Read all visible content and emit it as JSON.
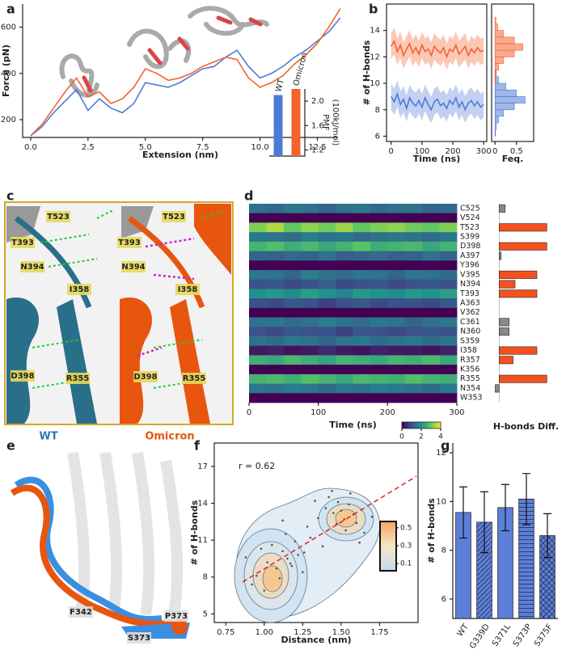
{
  "chart_data": [
    {
      "type": "line",
      "panel": "a",
      "xlabel": "Extension (nm)",
      "ylabel": "Force (pN)",
      "x": [
        0,
        0.5,
        1,
        1.5,
        2,
        2.5,
        3,
        3.5,
        4,
        4.5,
        5,
        5.5,
        6,
        6.5,
        7,
        7.5,
        8,
        8.5,
        9,
        9.5,
        10,
        10.5,
        11,
        11.5,
        12,
        12.5,
        13,
        13.5
      ],
      "series": [
        {
          "name": "WT",
          "color": "#4f7bd6",
          "values": [
            130,
            170,
            230,
            280,
            330,
            240,
            290,
            250,
            230,
            270,
            360,
            350,
            340,
            360,
            390,
            420,
            430,
            470,
            500,
            430,
            380,
            400,
            430,
            470,
            500,
            540,
            580,
            640
          ]
        },
        {
          "name": "Omicron",
          "color": "#f4622e",
          "values": [
            130,
            180,
            250,
            320,
            380,
            300,
            320,
            270,
            290,
            340,
            420,
            400,
            370,
            380,
            400,
            430,
            450,
            470,
            460,
            380,
            340,
            360,
            390,
            440,
            480,
            530,
            600,
            680
          ]
        }
      ],
      "xlim": [
        -0.35,
        13.4
      ],
      "xticks": [
        {
          "value": 0,
          "label": "0.0"
        },
        2.5,
        {
          "value": 5,
          "label": "5.0"
        },
        7.5,
        {
          "value": 10,
          "label": "10.0"
        },
        12.5
      ],
      "ylim": [
        123,
        700
      ],
      "yticks": [
        200,
        400,
        600
      ]
    },
    {
      "type": "bar",
      "ylabel": [
        "PMF",
        "(100kJ/mol)"
      ],
      "categories": [
        "WT",
        "Omicron"
      ],
      "values": [
        2.1,
        2.2
      ],
      "colors": [
        "#4f7bd6",
        "#f4622e"
      ],
      "ylim": [
        1.1,
        2.2
      ],
      "yticks": [
        1.2,
        1.6,
        {
          "value": 2,
          "label": "2.0"
        }
      ]
    },
    {
      "type": "line",
      "panel": "b",
      "xlabel": "Time (ns)",
      "ylabel": "# of H-bonds",
      "x": [
        0,
        10,
        20,
        30,
        40,
        50,
        60,
        70,
        80,
        90,
        100,
        110,
        120,
        130,
        140,
        150,
        160,
        170,
        180,
        190,
        200,
        210,
        220,
        230,
        240,
        250,
        260,
        270,
        280,
        290,
        300
      ],
      "series": [
        {
          "name": "Omicron",
          "color": "#f4622e",
          "error": 1.0,
          "values": [
            12.8,
            13.2,
            12.4,
            12.9,
            12.1,
            12.6,
            13.0,
            12.3,
            12.7,
            12.2,
            12.9,
            12.4,
            12.6,
            12.1,
            12.8,
            12.5,
            12.3,
            12.7,
            12.0,
            12.6,
            12.4,
            12.9,
            12.2,
            12.5,
            12.8,
            12.1,
            12.6,
            12.3,
            12.7,
            12.4,
            12.5
          ]
        },
        {
          "name": "WT",
          "color": "#4f7bd6",
          "error": 1.0,
          "values": [
            9.0,
            8.6,
            9.2,
            8.4,
            8.8,
            8.1,
            8.9,
            8.5,
            8.3,
            8.7,
            8.2,
            8.9,
            8.4,
            8.0,
            8.6,
            8.8,
            8.3,
            8.5,
            8.1,
            8.7,
            8.4,
            8.9,
            8.2,
            8.6,
            8.0,
            8.5,
            8.7,
            8.3,
            8.6,
            8.2,
            8.4
          ]
        }
      ],
      "xlim": [
        -15,
        310
      ],
      "xticks": [
        0,
        100,
        200,
        300
      ],
      "ylim": [
        5.6,
        16
      ],
      "yticks": [
        6,
        8,
        10,
        12,
        14
      ]
    },
    {
      "type": "histogram",
      "xlabel": "Feq.",
      "bins": [
        5.5,
        6,
        6.5,
        7,
        7.5,
        8,
        8.5,
        9,
        9.5,
        10,
        10.5,
        11,
        11.5,
        12,
        12.5,
        13,
        13.5,
        14,
        14.5,
        15
      ],
      "series": [
        {
          "name": "WT",
          "color": "#4f7bd6",
          "values": [
            0,
            0.01,
            0.03,
            0.08,
            0.2,
            0.45,
            0.7,
            0.5,
            0.25,
            0.08,
            0.02,
            0,
            0,
            0,
            0,
            0,
            0,
            0,
            0
          ]
        },
        {
          "name": "Omicron",
          "color": "#f4622e",
          "values": [
            0,
            0,
            0,
            0,
            0,
            0,
            0,
            0,
            0,
            0.01,
            0.03,
            0.08,
            0.2,
            0.45,
            0.65,
            0.45,
            0.2,
            0.06,
            0.02
          ]
        }
      ],
      "xlim": [
        -0.08,
        0.9
      ],
      "xticks": [
        0,
        0.5
      ],
      "ylim": [
        5.6,
        16
      ]
    },
    {
      "type": "heatmap",
      "panel": "d",
      "xlabel": "Time (ns)",
      "xlim": [
        0,
        300
      ],
      "xticks": [
        0,
        100,
        200,
        300
      ],
      "colormap": "viridis",
      "clim": [
        0,
        4
      ],
      "cticks": [
        0,
        2,
        4
      ],
      "matrix": [
        [
          1.5,
          1.4,
          1.6,
          1.5,
          1.3,
          1.5,
          1.6,
          1.4,
          1.5,
          1.5,
          1.3,
          1.4
        ],
        [
          0,
          0,
          0,
          0,
          0,
          0,
          0,
          0,
          0,
          0,
          0,
          0
        ],
        [
          3.2,
          3.5,
          3.0,
          3.3,
          3.1,
          3.4,
          3.0,
          3.2,
          3.3,
          3.1,
          3.0,
          3.2
        ],
        [
          1.6,
          1.5,
          1.4,
          1.7,
          1.5,
          1.6,
          1.4,
          1.5,
          1.6,
          1.5,
          1.4,
          1.6
        ],
        [
          2.6,
          2.8,
          2.5,
          2.7,
          2.4,
          2.6,
          2.9,
          2.5,
          2.6,
          2.7,
          2.4,
          2.6
        ],
        [
          1.3,
          1.2,
          1.4,
          1.3,
          1.5,
          1.2,
          1.3,
          1.4,
          1.2,
          1.3,
          1.5,
          1.3
        ],
        [
          0,
          0,
          0,
          0,
          0,
          0,
          0,
          0,
          0,
          0,
          0,
          0
        ],
        [
          1.6,
          1.5,
          1.3,
          1.7,
          1.5,
          1.4,
          1.6,
          1.5,
          1.3,
          1.6,
          1.5,
          1.4
        ],
        [
          1.0,
          1.1,
          0.9,
          1.0,
          1.2,
          0.9,
          1.0,
          1.1,
          0.9,
          1.0,
          1.1,
          1.0
        ],
        [
          2.0,
          2.1,
          1.9,
          2.2,
          2.0,
          1.8,
          2.1,
          2.0,
          1.9,
          2.1,
          2.0,
          2.2
        ],
        [
          1.0,
          0.9,
          1.1,
          1.0,
          0.8,
          1.0,
          1.1,
          0.9,
          1.0,
          1.0,
          0.9,
          1.1
        ],
        [
          0,
          0,
          0,
          0,
          0,
          0,
          0,
          0,
          0,
          0,
          0,
          0
        ],
        [
          1.5,
          1.6,
          1.4,
          1.5,
          1.7,
          1.5,
          1.4,
          1.6,
          1.5,
          1.3,
          1.5,
          1.6
        ],
        [
          1.0,
          0.9,
          1.1,
          1.0,
          1.0,
          0.8,
          1.1,
          1.0,
          0.9,
          1.0,
          1.1,
          1.0
        ],
        [
          1.5,
          1.4,
          1.6,
          1.5,
          1.3,
          1.5,
          1.6,
          1.4,
          1.5,
          1.6,
          1.4,
          1.5
        ],
        [
          0.3,
          0.4,
          0.2,
          0.3,
          0.5,
          0.3,
          0.2,
          0.4,
          0.3,
          0.3,
          0.2,
          0.4
        ],
        [
          2.5,
          2.4,
          2.7,
          2.5,
          2.3,
          2.6,
          2.5,
          2.4,
          2.6,
          2.5,
          2.7,
          2.4
        ],
        [
          0,
          0,
          0,
          0,
          0,
          0,
          0,
          0,
          0,
          0,
          0,
          0
        ],
        [
          2.6,
          2.7,
          2.5,
          2.8,
          2.6,
          2.4,
          2.7,
          2.6,
          2.5,
          2.8,
          2.6,
          2.5
        ],
        [
          1.6,
          1.5,
          1.7,
          1.6,
          1.4,
          1.6,
          1.5,
          1.7,
          1.6,
          1.5,
          1.4,
          1.6
        ],
        [
          0,
          0,
          0,
          0,
          0,
          0,
          0,
          0,
          0,
          0,
          0,
          0
        ]
      ]
    },
    {
      "type": "hbar",
      "xlabel": "H-bonds Diff.",
      "xlim": [
        -0.15,
        1.5
      ],
      "categories": [
        "C525",
        "V524",
        "T523",
        "S399",
        "D398",
        "A397",
        "Y396",
        "V395",
        "N394",
        "T393",
        "A363",
        "V362",
        "C361",
        "N360",
        "S359",
        "I358",
        "R357",
        "K356",
        "R355",
        "N354",
        "W353"
      ],
      "values": [
        0.15,
        0,
        1.2,
        0,
        1.2,
        0.05,
        0,
        0.95,
        0.4,
        0.95,
        0,
        0,
        0.25,
        0.25,
        0,
        0.95,
        0.35,
        0,
        1.2,
        -0.1,
        0
      ],
      "colors": [
        "#888888",
        "#888888",
        "#f4511e",
        "#888888",
        "#f4511e",
        "#888888",
        "#888888",
        "#f4511e",
        "#f4511e",
        "#f4511e",
        "#888888",
        "#888888",
        "#888888",
        "#888888",
        "#888888",
        "#f4511e",
        "#f4511e",
        "#888888",
        "#f4511e",
        "#888888",
        "#888888"
      ]
    },
    {
      "type": "scatter",
      "panel": "f",
      "xlabel": "Distance (nm)",
      "ylabel": "# of H-bonds",
      "annotation": "r = 0.62",
      "color": "#555555",
      "x": [
        1.02,
        1.08,
        1.12,
        1.15,
        1.18,
        1.22,
        1.1,
        1.05,
        1.2,
        1.25,
        1.14,
        1.17,
        0.95,
        0.98,
        1.3,
        1.28,
        1.35,
        1.4,
        1.45,
        1.48,
        1.5,
        1.52,
        1.55,
        1.42,
        1.47,
        1.53,
        1.58,
        1.6,
        1.38,
        1.44,
        0.88,
        0.92,
        1.65,
        1.7,
        1.33,
        1.62,
        1.0,
        1.26,
        1.56,
        1.12
      ],
      "y": [
        9.2,
        8.7,
        10.1,
        9.5,
        8.9,
        9.8,
        7.9,
        10.6,
        10.9,
        8.4,
        11.5,
        9.1,
        8.1,
        10.3,
        11.2,
        12.1,
        12.8,
        13.6,
        13.2,
        14.1,
        13.4,
        12.7,
        13.9,
        14.5,
        12.3,
        11.8,
        13.1,
        12.4,
        10.5,
        15.0,
        9.6,
        7.4,
        11.6,
        12.9,
        14.2,
        10.8,
        6.9,
        10.0,
        14.8,
        12.6
      ],
      "fit": {
        "x": [
          0.86,
          1.99
        ],
        "y": [
          7.6,
          16.2
        ],
        "color": "#e02020"
      },
      "xlim": [
        0.675,
        2.0
      ],
      "xticks": [
        0.75,
        {
          "value": 1,
          "label": "1.00"
        },
        1.25,
        {
          "value": 1.5,
          "label": "1.50"
        },
        1.75
      ],
      "ylim": [
        4.3,
        18.9
      ],
      "yticks": [
        5,
        8,
        11,
        14,
        17
      ],
      "colormap": [
        "#c6dbef",
        "#f5e6c8",
        "#f4a460"
      ],
      "clim": [
        0.02,
        0.57
      ],
      "cticks": [
        0.1,
        0.3,
        0.5
      ]
    },
    {
      "type": "bar",
      "panel": "g",
      "ylabel": "# of H-bonds",
      "categories": [
        "WT",
        "G339D",
        "S371L",
        "S373P",
        "S375F"
      ],
      "values": [
        9.55,
        9.15,
        9.75,
        10.1,
        8.6
      ],
      "errors": [
        1.05,
        1.25,
        0.95,
        1.05,
        0.9
      ],
      "color": "#5b7fd9",
      "hatches": [
        "none",
        "/",
        "\\",
        "-",
        "x"
      ],
      "ylim": [
        5.2,
        12.4
      ],
      "yticks": [
        6,
        8,
        10,
        12
      ]
    }
  ],
  "images": [
    {
      "panel": "c",
      "labels": [
        "T523",
        "T393",
        "N394",
        "I358",
        "D398",
        "R355",
        "T523",
        "T393",
        "N394",
        "I358",
        "D398",
        "R355"
      ],
      "captions": [
        "WT",
        "Omicron"
      ]
    },
    {
      "panel": "e",
      "labels": [
        "F342",
        "S373",
        "P373"
      ]
    }
  ]
}
